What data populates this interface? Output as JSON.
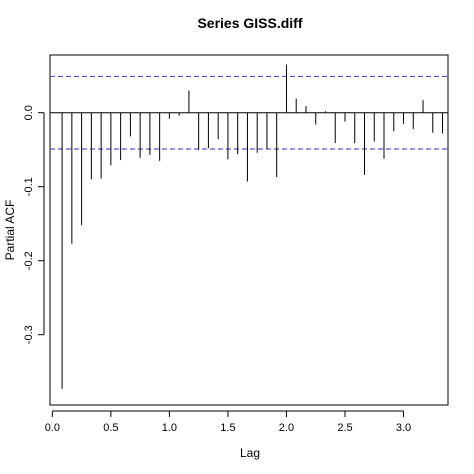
{
  "chart_data": {
    "type": "bar",
    "title": "Series  GISS.diff",
    "xlabel": "Lag",
    "ylabel": "Partial ACF",
    "xlim": [
      -0.02,
      3.38
    ],
    "ylim": [
      -0.395,
      0.078
    ],
    "xticks": [
      0.0,
      0.5,
      1.0,
      1.5,
      2.0,
      2.5,
      3.0
    ],
    "xtick_labels": [
      "0.0",
      "0.5",
      "1.0",
      "1.5",
      "2.0",
      "2.5",
      "3.0"
    ],
    "yticks": [
      0.0,
      -0.1,
      -0.2,
      -0.3
    ],
    "ytick_labels": [
      "0.0",
      "-0.1",
      "-0.2",
      "-0.3"
    ],
    "confidence_band": [
      0.049,
      -0.049
    ],
    "series": [
      {
        "x": [
          0.0833,
          0.1667,
          0.25,
          0.3333,
          0.4167,
          0.5,
          0.5833,
          0.6667,
          0.75,
          0.8333,
          0.9167,
          1.0,
          1.0833,
          1.1667,
          1.25,
          1.3333,
          1.4167,
          1.5,
          1.5833,
          1.6667,
          1.75,
          1.8333,
          1.9167,
          2.0,
          2.0833,
          2.1667,
          2.25,
          2.3333,
          2.4167,
          2.5,
          2.5833,
          2.6667,
          2.75,
          2.8333,
          2.9167,
          3.0,
          3.0833,
          3.1667,
          3.25,
          3.3333
        ],
        "values": [
          -0.373,
          -0.177,
          -0.152,
          -0.09,
          -0.089,
          -0.071,
          -0.064,
          -0.032,
          -0.061,
          -0.057,
          -0.065,
          -0.008,
          -0.004,
          0.03,
          -0.05,
          -0.048,
          -0.036,
          -0.063,
          -0.056,
          -0.093,
          -0.054,
          -0.049,
          -0.087,
          0.065,
          0.019,
          0.009,
          -0.016,
          0.002,
          -0.041,
          -0.012,
          -0.041,
          -0.084,
          -0.039,
          -0.062,
          -0.025,
          -0.015,
          -0.022,
          0.017,
          -0.027,
          -0.028
        ]
      }
    ],
    "colors": {
      "bars": "#000000",
      "band": "#5555cc",
      "axis": "#000000"
    }
  }
}
